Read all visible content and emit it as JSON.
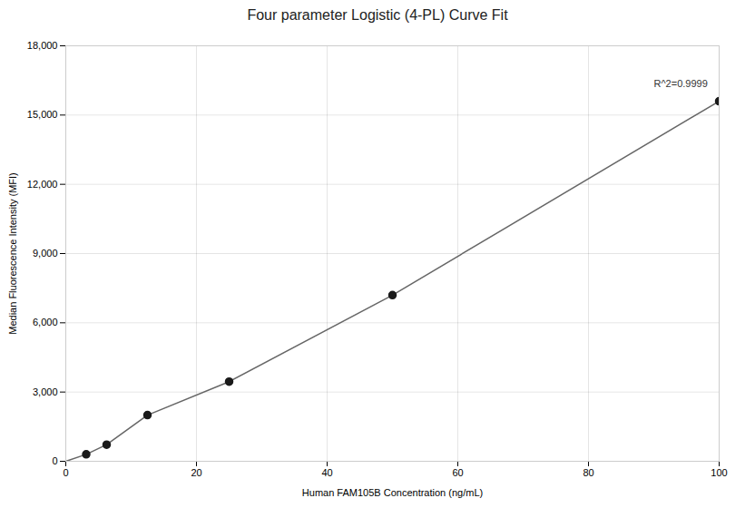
{
  "chart_data": {
    "type": "scatter",
    "title": "Four parameter Logistic (4-PL) Curve Fit",
    "xlabel": "Human FAM105B Concentration (ng/mL)",
    "ylabel": "Median Fluorescence Intensity (MFI)",
    "series": [
      {
        "type": "line",
        "color": "#666666",
        "x": [
          0,
          3.125,
          6.25,
          12.5,
          25,
          50,
          100
        ],
        "values": [
          0,
          300,
          720,
          2000,
          3450,
          7200,
          15600
        ]
      },
      {
        "type": "scatter",
        "color": "#1a1a1a",
        "x": [
          3.125,
          6.25,
          12.5,
          25,
          50,
          100
        ],
        "values": [
          300,
          720,
          2000,
          3450,
          7200,
          15600
        ]
      }
    ],
    "annotations": [
      {
        "text": "R^2=0.9999",
        "x": 90,
        "y": 16200
      }
    ],
    "xlim": [
      0,
      100
    ],
    "ylim": [
      0,
      18000
    ],
    "xticks": [
      0,
      20,
      40,
      60,
      80,
      100
    ],
    "yticks": [
      0,
      {
        "value": 3000,
        "label": "3,000"
      },
      {
        "value": 6000,
        "label": "6,000"
      },
      {
        "value": 9000,
        "label": "9,000"
      },
      {
        "value": 12000,
        "label": "12,000"
      },
      {
        "value": 15000,
        "label": "15,000"
      },
      {
        "value": 18000,
        "label": "18,000"
      }
    ],
    "grid": true
  }
}
